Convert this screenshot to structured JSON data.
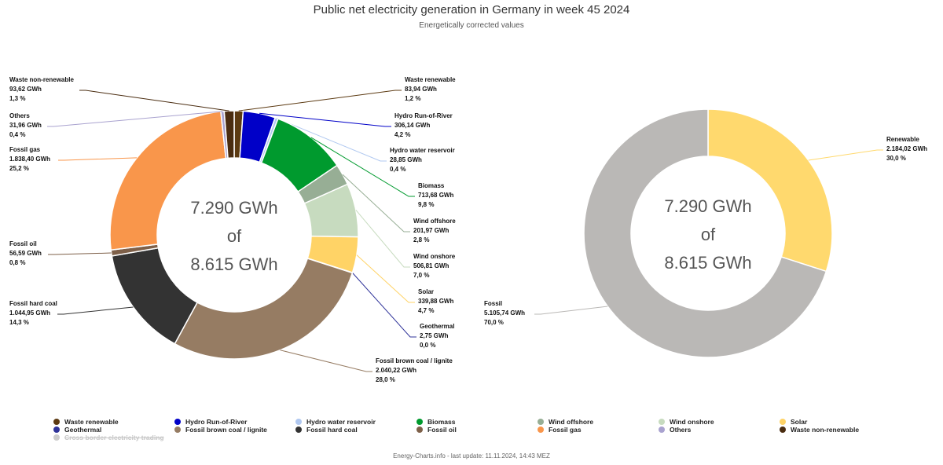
{
  "header": {
    "title": "Public net electricity generation in Germany in week 45 2024",
    "subtitle": "Energetically corrected values"
  },
  "chart_data": [
    {
      "type": "pie",
      "name": "Generation by source",
      "center_lines": [
        "7.290 GWh",
        "of",
        "8.615 GWh"
      ],
      "slices": [
        {
          "key": "waste_renewable",
          "label": "Waste renewable",
          "value_text": "83,94 GWh",
          "pct_text": "1,2 %",
          "value": 83.94,
          "color": "#5c3a12"
        },
        {
          "key": "hydro_ror",
          "label": "Hydro Run-of-River",
          "value_text": "306,14 GWh",
          "pct_text": "4,2 %",
          "value": 306.14,
          "color": "#0000c8"
        },
        {
          "key": "hydro_reservoir",
          "label": "Hydro water reservoir",
          "value_text": "28,85 GWh",
          "pct_text": "0,4 %",
          "value": 28.85,
          "color": "#b0c8f0"
        },
        {
          "key": "biomass",
          "label": "Biomass",
          "value_text": "713,68 GWh",
          "pct_text": "9,8 %",
          "value": 713.68,
          "color": "#009a2e"
        },
        {
          "key": "wind_offshore",
          "label": "Wind offshore",
          "value_text": "201,97 GWh",
          "pct_text": "2,8 %",
          "value": 201.97,
          "color": "#97ae95"
        },
        {
          "key": "wind_onshore",
          "label": "Wind onshore",
          "value_text": "506,81 GWh",
          "pct_text": "7,0 %",
          "value": 506.81,
          "color": "#c7dbbf"
        },
        {
          "key": "solar",
          "label": "Solar",
          "value_text": "339,88 GWh",
          "pct_text": "4,7 %",
          "value": 339.88,
          "color": "#ffd366"
        },
        {
          "key": "geothermal",
          "label": "Geothermal",
          "value_text": "2,75 GWh",
          "pct_text": "0,0 %",
          "value": 2.75,
          "color": "#2f3399"
        },
        {
          "key": "brown_coal",
          "label": "Fossil brown coal / lignite",
          "value_text": "2.040,22 GWh",
          "pct_text": "28,0 %",
          "value": 2040.22,
          "color": "#967c63"
        },
        {
          "key": "hard_coal",
          "label": "Fossil hard coal",
          "value_text": "1.044,95 GWh",
          "pct_text": "14,3 %",
          "value": 1044.95,
          "color": "#333333"
        },
        {
          "key": "fossil_oil",
          "label": "Fossil oil",
          "value_text": "56,59 GWh",
          "pct_text": "0,8 %",
          "value": 56.59,
          "color": "#7e6049"
        },
        {
          "key": "fossil_gas",
          "label": "Fossil gas",
          "value_text": "1.838,40 GWh",
          "pct_text": "25,2 %",
          "value": 1838.4,
          "color": "#f9964b"
        },
        {
          "key": "others",
          "label": "Others",
          "value_text": "31,96 GWh",
          "pct_text": "0,4 %",
          "value": 31.96,
          "color": "#a9a2cf"
        },
        {
          "key": "waste_nonrenewable",
          "label": "Waste non-renewable",
          "value_text": "93,62 GWh",
          "pct_text": "1,3 %",
          "value": 93.62,
          "color": "#4a2c10"
        }
      ]
    },
    {
      "type": "pie",
      "name": "Renewable vs fossil",
      "center_lines": [
        "7.290 GWh",
        "of",
        "8.615 GWh"
      ],
      "slices": [
        {
          "key": "renewable",
          "label": "Renewable",
          "value_text": "2.184,02 GWh",
          "pct_text": "30,0 %",
          "value": 2184.02,
          "color": "#ffd96e"
        },
        {
          "key": "fossil",
          "label": "Fossil",
          "value_text": "5.105,74 GWh",
          "pct_text": "70,0 %",
          "value": 5105.74,
          "color": "#bab8b6"
        }
      ]
    }
  ],
  "legend": {
    "items": [
      {
        "label": "Waste renewable",
        "color": "#5c3a12",
        "hidden": false
      },
      {
        "label": "Hydro Run-of-River",
        "color": "#0000c8",
        "hidden": false
      },
      {
        "label": "Hydro water reservoir",
        "color": "#b0c8f0",
        "hidden": false
      },
      {
        "label": "Biomass",
        "color": "#009a2e",
        "hidden": false
      },
      {
        "label": "Wind offshore",
        "color": "#97ae95",
        "hidden": false
      },
      {
        "label": "Wind onshore",
        "color": "#c7dbbf",
        "hidden": false
      },
      {
        "label": "Solar",
        "color": "#ffd366",
        "hidden": false
      },
      {
        "label": "Geothermal",
        "color": "#2f3399",
        "hidden": false
      },
      {
        "label": "Fossil brown coal / lignite",
        "color": "#967c63",
        "hidden": false
      },
      {
        "label": "Fossil hard coal",
        "color": "#333333",
        "hidden": false
      },
      {
        "label": "Fossil oil",
        "color": "#7e6049",
        "hidden": false
      },
      {
        "label": "Fossil gas",
        "color": "#f9964b",
        "hidden": false
      },
      {
        "label": "Others",
        "color": "#a9a2cf",
        "hidden": false
      },
      {
        "label": "Waste non-renewable",
        "color": "#4a2c10",
        "hidden": false
      },
      {
        "label": "Cross border electricity trading",
        "color": "#cccccc",
        "hidden": true
      }
    ]
  },
  "credits": "Energy-Charts.info - last update: 11.11.2024, 14:43 MEZ"
}
